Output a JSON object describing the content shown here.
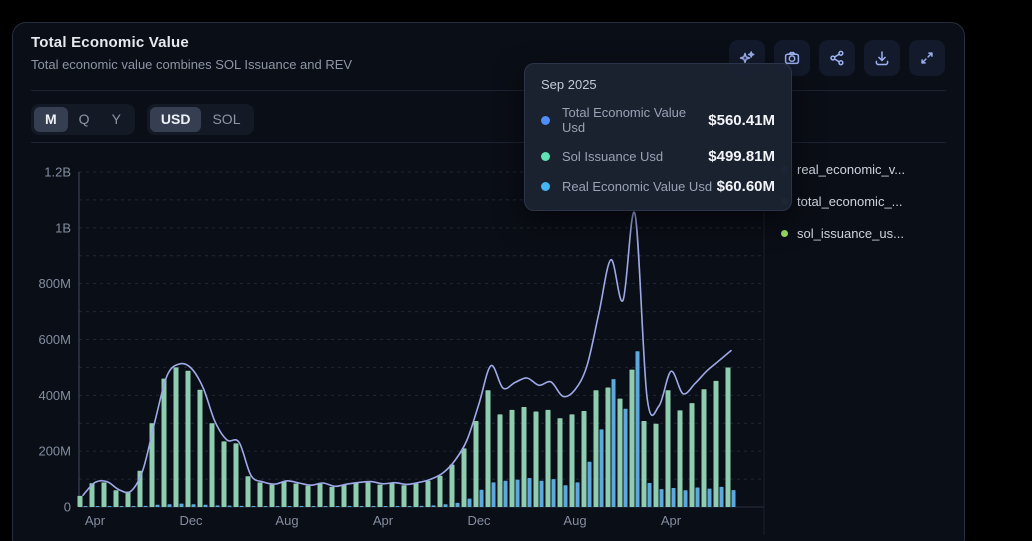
{
  "header": {
    "title": "Total Economic Value",
    "subtitle": "Total economic value combines SOL Issuance and REV"
  },
  "toolbar": {
    "buttons": [
      {
        "icon": "ai-sparkles-icon"
      },
      {
        "icon": "camera-icon"
      },
      {
        "icon": "share-icon"
      },
      {
        "icon": "download-icon"
      },
      {
        "icon": "expand-icon"
      }
    ]
  },
  "controls": {
    "period": {
      "options": [
        "M",
        "Q",
        "Y"
      ],
      "selected": "M"
    },
    "unit": {
      "options": [
        "USD",
        "SOL"
      ],
      "selected": "USD"
    }
  },
  "tooltip": {
    "title": "Sep 2025",
    "rows": [
      {
        "label": "Total Economic Value Usd",
        "value": "$560.41M",
        "color": "#4f8ef7"
      },
      {
        "label": "Sol Issuance Usd",
        "value": "$499.81M",
        "color": "#5fe3b3"
      },
      {
        "label": "Real Economic Value Usd",
        "value": "$60.60M",
        "color": "#45b6f2"
      }
    ]
  },
  "legend": {
    "items": [
      {
        "label": "real_economic_v...",
        "color": "#4f8ef7"
      },
      {
        "label": "total_economic_...",
        "color": "#73a366"
      },
      {
        "label": "sol_issuance_us...",
        "color": "#9bdf63"
      }
    ]
  },
  "chart_data": {
    "type": "bar+line",
    "title": "Total Economic Value",
    "unit": "USD (millions)",
    "ylim": [
      0,
      1200
    ],
    "grid": "dashed horizontal every 100M",
    "y_ticks": [
      {
        "v": 0,
        "label": "0"
      },
      {
        "v": 200,
        "label": "200M"
      },
      {
        "v": 400,
        "label": "400M"
      },
      {
        "v": 600,
        "label": "600M"
      },
      {
        "v": 800,
        "label": "800M"
      },
      {
        "v": 1000,
        "label": "1B"
      },
      {
        "v": 1200,
        "label": "1.2B"
      }
    ],
    "x_ticks": [
      {
        "index": 1,
        "label": "Apr"
      },
      {
        "index": 9,
        "label": "Dec"
      },
      {
        "index": 17,
        "label": "Aug"
      },
      {
        "index": 25,
        "label": "Apr"
      },
      {
        "index": 33,
        "label": "Dec"
      },
      {
        "index": 41,
        "label": "Aug"
      },
      {
        "index": 49,
        "label": "Apr"
      }
    ],
    "months": [
      "2021-03",
      "2021-04",
      "2021-05",
      "2021-06",
      "2021-07",
      "2021-08",
      "2021-09",
      "2021-10",
      "2021-11",
      "2021-12",
      "2022-01",
      "2022-02",
      "2022-03",
      "2022-04",
      "2022-05",
      "2022-06",
      "2022-07",
      "2022-08",
      "2022-09",
      "2022-10",
      "2022-11",
      "2022-12",
      "2023-01",
      "2023-02",
      "2023-03",
      "2023-04",
      "2023-05",
      "2023-06",
      "2023-07",
      "2023-08",
      "2023-09",
      "2023-10",
      "2023-11",
      "2023-12",
      "2024-01",
      "2024-02",
      "2024-03",
      "2024-04",
      "2024-05",
      "2024-06",
      "2024-07",
      "2024-08",
      "2024-09",
      "2024-10",
      "2024-11",
      "2024-12",
      "2025-01",
      "2025-02",
      "2025-03",
      "2025-04",
      "2025-05",
      "2025-06",
      "2025-07",
      "2025-08",
      "2025-09"
    ],
    "series": [
      {
        "name": "sol_issuance_usd",
        "type": "bar",
        "color": "#8ecdb0",
        "values": [
          40,
          85,
          88,
          60,
          55,
          130,
          300,
          460,
          500,
          488,
          420,
          300,
          235,
          228,
          110,
          88,
          80,
          92,
          84,
          76,
          84,
          72,
          80,
          86,
          88,
          80,
          84,
          78,
          84,
          94,
          112,
          152,
          210,
          308,
          418,
          332,
          348,
          358,
          342,
          348,
          318,
          332,
          344,
          418,
          428,
          388,
          492,
          308,
          298,
          418,
          346,
          372,
          422,
          452,
          499.81
        ]
      },
      {
        "name": "real_economic_value_usd",
        "type": "bar",
        "color": "#5da8dc",
        "values": [
          2,
          3,
          3,
          2,
          2,
          4,
          8,
          10,
          12,
          10,
          8,
          6,
          5,
          4,
          3,
          2,
          2,
          2,
          2,
          2,
          2,
          2,
          2,
          2,
          3,
          3,
          3,
          3,
          4,
          6,
          10,
          15,
          30,
          62,
          88,
          94,
          98,
          104,
          94,
          100,
          78,
          88,
          162,
          278,
          458,
          352,
          558,
          86,
          64,
          68,
          60,
          70,
          66,
          72,
          60.6
        ]
      },
      {
        "name": "total_economic_value_usd",
        "type": "line",
        "color": "#9fa9e8",
        "values": [
          42,
          88,
          91,
          62,
          57,
          134,
          308,
          470,
          512,
          498,
          428,
          306,
          240,
          232,
          113,
          90,
          82,
          94,
          86,
          78,
          86,
          74,
          82,
          88,
          91,
          83,
          87,
          81,
          88,
          100,
          122,
          167,
          240,
          370,
          506,
          426,
          446,
          462,
          436,
          448,
          396,
          420,
          506,
          696,
          886,
          740,
          1050,
          394,
          362,
          486,
          406,
          442,
          488,
          524,
          560.41
        ]
      }
    ]
  },
  "theme": {
    "card_bg": "#0a0e16",
    "axis_text": "#848da0",
    "grid_color": "#222836",
    "axis_line": "#434b5e",
    "line_color": "#9fa9e8",
    "bar_green": "#8ecdb0",
    "bar_blue": "#5da8dc"
  }
}
